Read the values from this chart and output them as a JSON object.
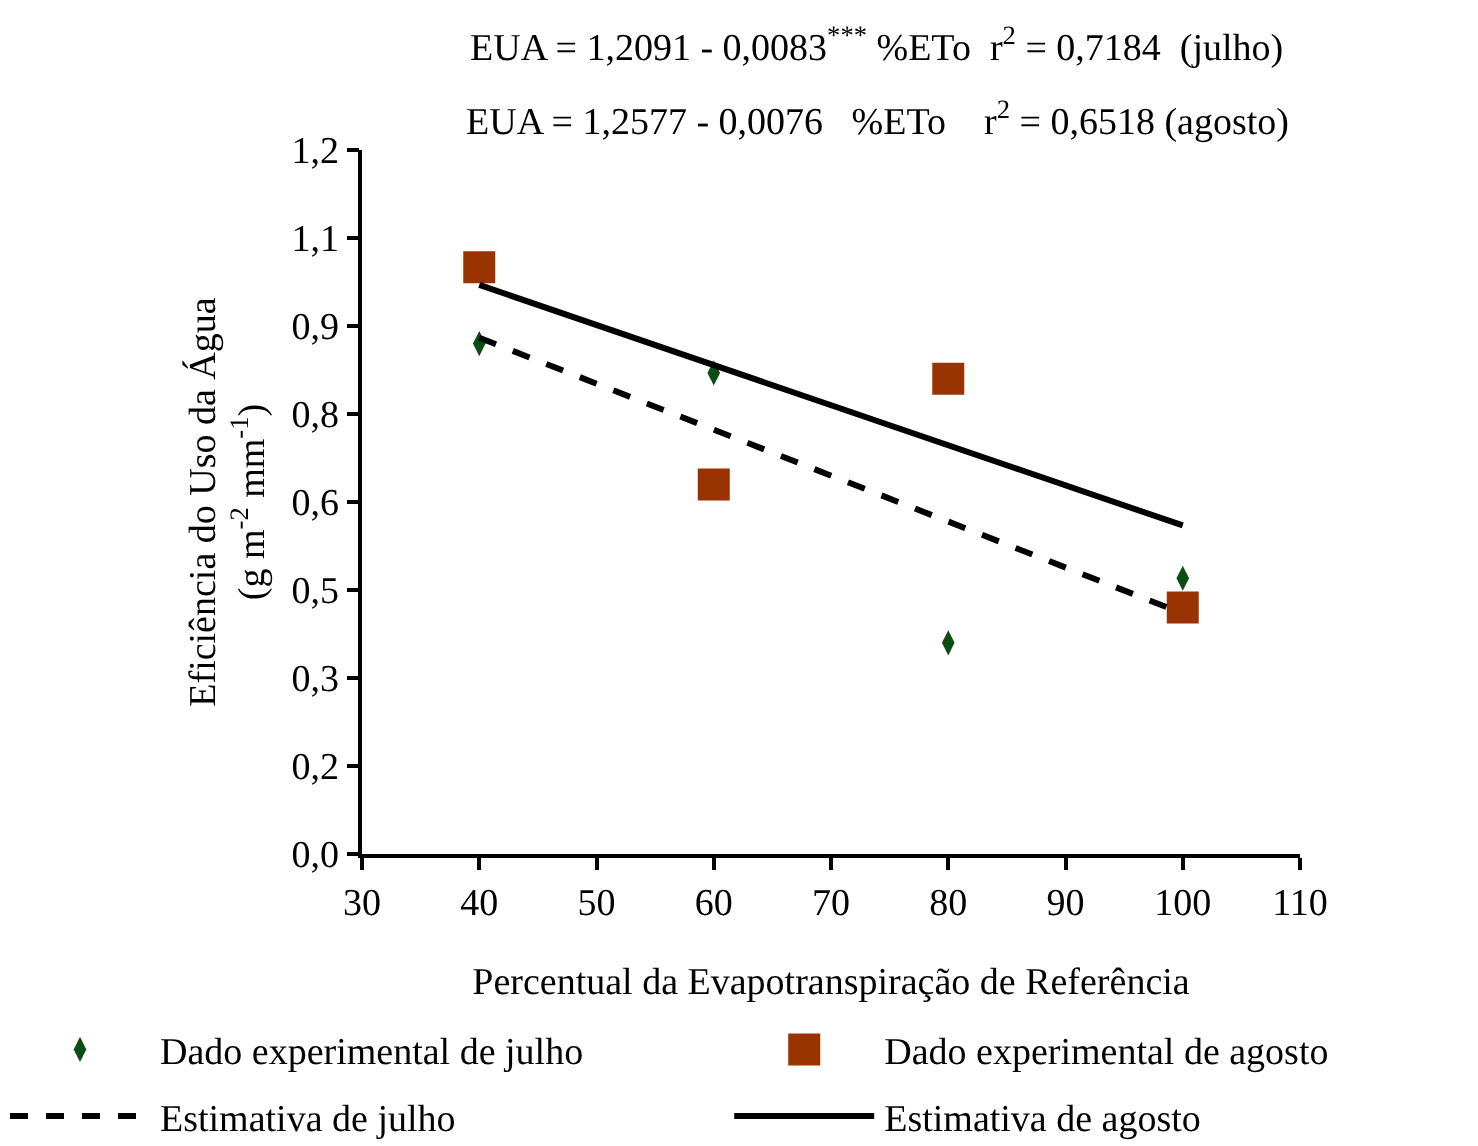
{
  "chart_data": {
    "type": "scatter",
    "annotations": [
      "EUA = 1,2091 - 0,0083$^{***}$ %ETo  r$^{2}$ = 0,7184  (julho)",
      "EUA = 1,2577 - 0,0076   %ETo    r$^{2}$ = 0,6518 (agosto)"
    ],
    "xlabel": "Percentual da Evapotranspiração de Referência",
    "ylabel": "Eficiência do Uso da Água\n(g m$^{-2}$ mm$^{-1}$)",
    "series": [
      {
        "name": "Dado experimental de julho",
        "marker": "diamond",
        "color": "#0b4d12",
        "x": [
          40,
          60,
          80,
          100
        ],
        "values": [
          0.87,
          0.82,
          0.36,
          0.47
        ]
      },
      {
        "name": "Dado experimental de agosto",
        "marker": "square",
        "color": "#993300",
        "x": [
          40,
          60,
          80,
          100
        ],
        "values": [
          1.0,
          0.63,
          0.81,
          0.42
        ]
      },
      {
        "name": "Estimativa de julho",
        "type": "line",
        "line_style": "dashed",
        "marker": "none",
        "color": "#000000",
        "x": [
          40,
          100
        ],
        "values": [
          0.88,
          0.41
        ]
      },
      {
        "name": "Estimativa de agosto",
        "type": "line",
        "line_style": "solid",
        "marker": "none",
        "color": "#000000",
        "x": [
          40,
          100
        ],
        "values": [
          0.97,
          0.56
        ]
      }
    ],
    "xlim": [
      30,
      110
    ],
    "xticks": [
      30,
      40,
      50,
      60,
      70,
      80,
      90,
      100,
      110
    ],
    "ylim": [
      0,
      1.2
    ],
    "yticks": [
      {
        "value": 0,
        "label": "0,0"
      },
      {
        "value": 0.15,
        "label": "0,2"
      },
      {
        "value": 0.3,
        "label": "0,3"
      },
      {
        "value": 0.45,
        "label": "0,5"
      },
      {
        "value": 0.6,
        "label": "0,6"
      },
      {
        "value": 0.75,
        "label": "0,8"
      },
      {
        "value": 0.9,
        "label": "0,9"
      },
      {
        "value": 1.05,
        "label": "1,1"
      },
      {
        "value": 1.2,
        "label": "1,2"
      }
    ],
    "grid": false,
    "legend": "bottom"
  }
}
